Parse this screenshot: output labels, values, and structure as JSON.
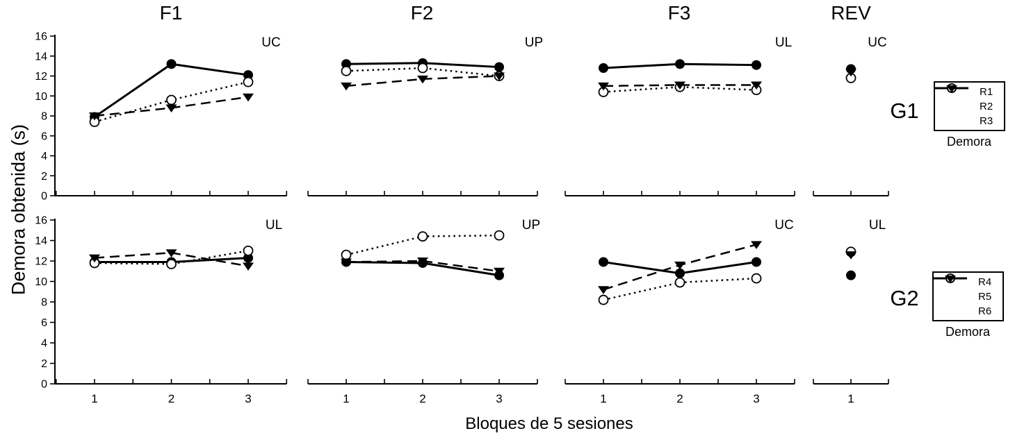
{
  "chart_data": {
    "type": "line",
    "xlabel": "Bloques de 5 sesiones",
    "ylabel": "Demora obtenida (s)",
    "ylim": [
      0,
      16
    ],
    "yticks": [
      0,
      2,
      4,
      6,
      8,
      10,
      12,
      14,
      16
    ],
    "grid": false,
    "legend_position": "right",
    "columns": [
      {
        "label": "F1",
        "x": [
          1,
          2,
          3
        ]
      },
      {
        "label": "F2",
        "x": [
          1,
          2,
          3
        ]
      },
      {
        "label": "F3",
        "x": [
          1,
          2,
          3
        ]
      },
      {
        "label": "REV",
        "x": [
          1
        ]
      }
    ],
    "rows": [
      {
        "group": "G1",
        "legend": {
          "title": "Demora",
          "entries": [
            {
              "name": "R1",
              "line": "solid",
              "marker": "filled-circle"
            },
            {
              "name": "R2",
              "line": "dotted",
              "marker": "open-circle"
            },
            {
              "name": "R3",
              "line": "dashed",
              "marker": "filled-triangle"
            }
          ]
        },
        "panels": [
          {
            "column": "F1",
            "condition": "UC",
            "series": [
              {
                "name": "R1",
                "values": [
                  7.9,
                  13.2,
                  12.1
                ]
              },
              {
                "name": "R2",
                "values": [
                  7.4,
                  9.6,
                  11.4
                ]
              },
              {
                "name": "R3",
                "values": [
                  8.0,
                  8.8,
                  9.9
                ]
              }
            ]
          },
          {
            "column": "F2",
            "condition": "UP",
            "series": [
              {
                "name": "R1",
                "values": [
                  13.2,
                  13.3,
                  12.9
                ]
              },
              {
                "name": "R2",
                "values": [
                  12.5,
                  12.8,
                  12.0
                ]
              },
              {
                "name": "R3",
                "values": [
                  11.0,
                  11.7,
                  12.0
                ]
              }
            ]
          },
          {
            "column": "F3",
            "condition": "UL",
            "series": [
              {
                "name": "R1",
                "values": [
                  12.8,
                  13.2,
                  13.1
                ]
              },
              {
                "name": "R2",
                "values": [
                  10.4,
                  10.9,
                  10.6
                ]
              },
              {
                "name": "R3",
                "values": [
                  11.0,
                  11.1,
                  11.1
                ]
              }
            ]
          },
          {
            "column": "REV",
            "condition": "UC",
            "series": [
              {
                "name": "R1",
                "values": [
                  12.7
                ]
              },
              {
                "name": "R2",
                "values": [
                  11.8
                ]
              },
              {
                "name": "R3",
                "values": [
                  12.4
                ]
              }
            ]
          }
        ]
      },
      {
        "group": "G2",
        "legend": {
          "title": "Demora",
          "entries": [
            {
              "name": "R4",
              "line": "solid",
              "marker": "filled-circle"
            },
            {
              "name": "R5",
              "line": "dotted",
              "marker": "open-circle"
            },
            {
              "name": "R6",
              "line": "dashed",
              "marker": "filled-triangle"
            }
          ]
        },
        "panels": [
          {
            "column": "F1",
            "condition": "UL",
            "series": [
              {
                "name": "R4",
                "values": [
                  11.9,
                  11.9,
                  12.3
                ]
              },
              {
                "name": "R5",
                "values": [
                  11.8,
                  11.7,
                  13.0
                ]
              },
              {
                "name": "R6",
                "values": [
                  12.3,
                  12.8,
                  11.5
                ]
              }
            ]
          },
          {
            "column": "F2",
            "condition": "UP",
            "series": [
              {
                "name": "R4",
                "values": [
                  11.9,
                  11.8,
                  10.6
                ]
              },
              {
                "name": "R5",
                "values": [
                  12.6,
                  14.4,
                  14.5
                ]
              },
              {
                "name": "R6",
                "values": [
                  11.9,
                  12.0,
                  11.0
                ]
              }
            ]
          },
          {
            "column": "F3",
            "condition": "UC",
            "series": [
              {
                "name": "R4",
                "values": [
                  11.9,
                  10.8,
                  11.9
                ]
              },
              {
                "name": "R5",
                "values": [
                  8.2,
                  9.9,
                  10.3
                ]
              },
              {
                "name": "R6",
                "values": [
                  9.2,
                  11.6,
                  13.6
                ]
              }
            ]
          },
          {
            "column": "REV",
            "condition": "UL",
            "series": [
              {
                "name": "R4",
                "values": [
                  10.6
                ]
              },
              {
                "name": "R5",
                "values": [
                  12.9
                ]
              },
              {
                "name": "R6",
                "values": [
                  12.6
                ]
              }
            ]
          }
        ]
      }
    ],
    "colors": {
      "foreground": "#000000",
      "background": "#ffffff"
    }
  }
}
